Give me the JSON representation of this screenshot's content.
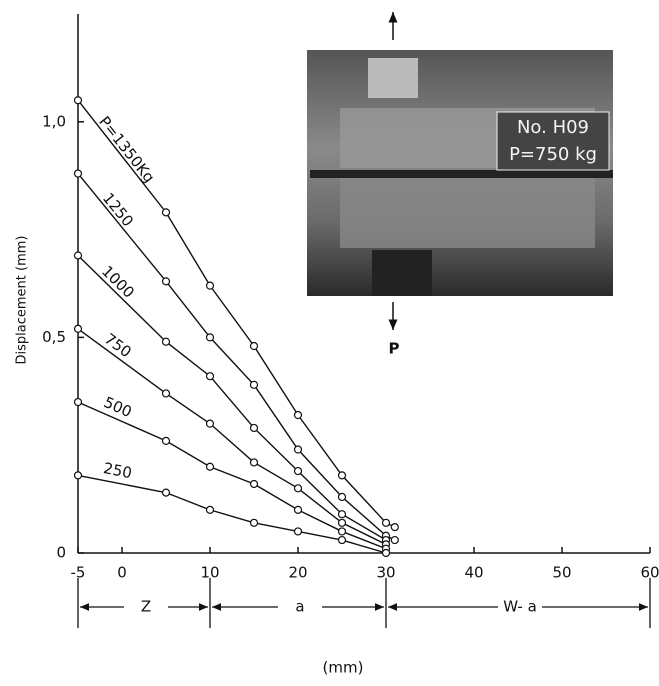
{
  "chart_data": {
    "type": "line",
    "y_label": "Displacement (mm)",
    "x_label": "(mm)",
    "xlim": [
      -5,
      60
    ],
    "ylim": [
      0,
      1.25
    ],
    "xticks": [
      -5,
      0,
      10,
      20,
      30,
      40,
      50,
      60
    ],
    "yticks": [
      0,
      {
        "value": 0.5,
        "label": "0,5"
      },
      {
        "value": 1,
        "label": "1,0"
      }
    ],
    "color": "#111111",
    "series": [
      {
        "name": "P=1350Kg",
        "x": [
          -5,
          5,
          10,
          15,
          20,
          25,
          30,
          31
        ],
        "values": [
          1.05,
          0.79,
          0.62,
          0.48,
          0.32,
          0.18,
          0.07,
          0.06
        ]
      },
      {
        "name": "1250",
        "x": [
          -5,
          5,
          10,
          15,
          20,
          25,
          30,
          31
        ],
        "values": [
          0.88,
          0.63,
          0.5,
          0.39,
          0.24,
          0.13,
          0.04,
          0.03
        ]
      },
      {
        "name": "1000",
        "x": [
          -5,
          5,
          10,
          15,
          20,
          25,
          30
        ],
        "values": [
          0.69,
          0.49,
          0.41,
          0.29,
          0.19,
          0.09,
          0.03
        ]
      },
      {
        "name": "750",
        "x": [
          -5,
          5,
          10,
          15,
          20,
          25,
          30
        ],
        "values": [
          0.52,
          0.37,
          0.3,
          0.21,
          0.15,
          0.07,
          0.02
        ]
      },
      {
        "name": "500",
        "x": [
          -5,
          5,
          10,
          15,
          20,
          25,
          30
        ],
        "values": [
          0.35,
          0.26,
          0.2,
          0.16,
          0.1,
          0.05,
          0.01
        ]
      },
      {
        "name": "250",
        "x": [
          -5,
          5,
          10,
          15,
          20,
          25,
          30
        ],
        "values": [
          0.18,
          0.14,
          0.1,
          0.07,
          0.05,
          0.03,
          0.0
        ]
      }
    ],
    "dimensions": [
      "Z",
      "a",
      "W- a"
    ],
    "photo_labels": [
      "No. H09",
      "P=750 kg",
      "P"
    ]
  }
}
